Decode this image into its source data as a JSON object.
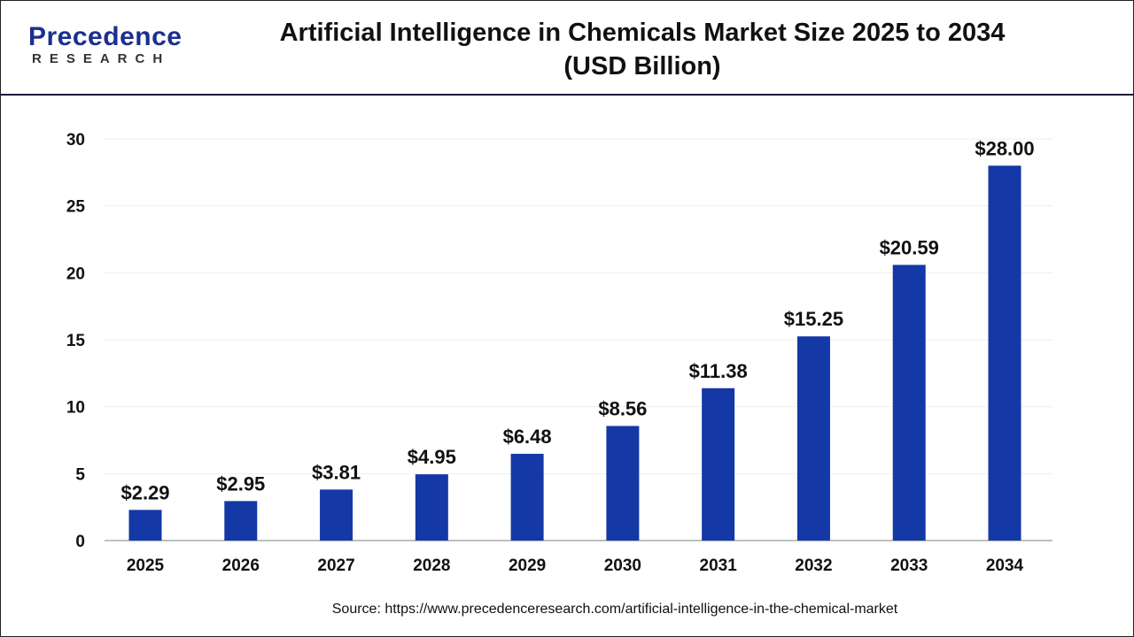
{
  "logo": {
    "line1": "Precedence",
    "line2": "RESEARCH"
  },
  "source": "Source: https://www.precedenceresearch.com/artificial-intelligence-in-the-chemical-market",
  "chart_data": {
    "type": "bar",
    "title": "Artificial Intelligence in Chemicals Market Size 2025 to 2034",
    "subtitle": "(USD Billion)",
    "categories": [
      "2025",
      "2026",
      "2027",
      "2028",
      "2029",
      "2030",
      "2031",
      "2032",
      "2033",
      "2034"
    ],
    "values": [
      2.29,
      2.95,
      3.81,
      4.95,
      6.48,
      8.56,
      11.38,
      15.25,
      20.59,
      28.0
    ],
    "data_labels": [
      "$2.29",
      "$2.95",
      "$3.81",
      "$4.95",
      "$6.48",
      "$8.56",
      "$11.38",
      "$15.25",
      "$20.59",
      "$28.00"
    ],
    "ylim": [
      0,
      30
    ],
    "yticks": [
      0,
      5,
      10,
      15,
      20,
      25,
      30
    ],
    "grid": true,
    "legend": "none",
    "bar_color": "#1438a6"
  }
}
